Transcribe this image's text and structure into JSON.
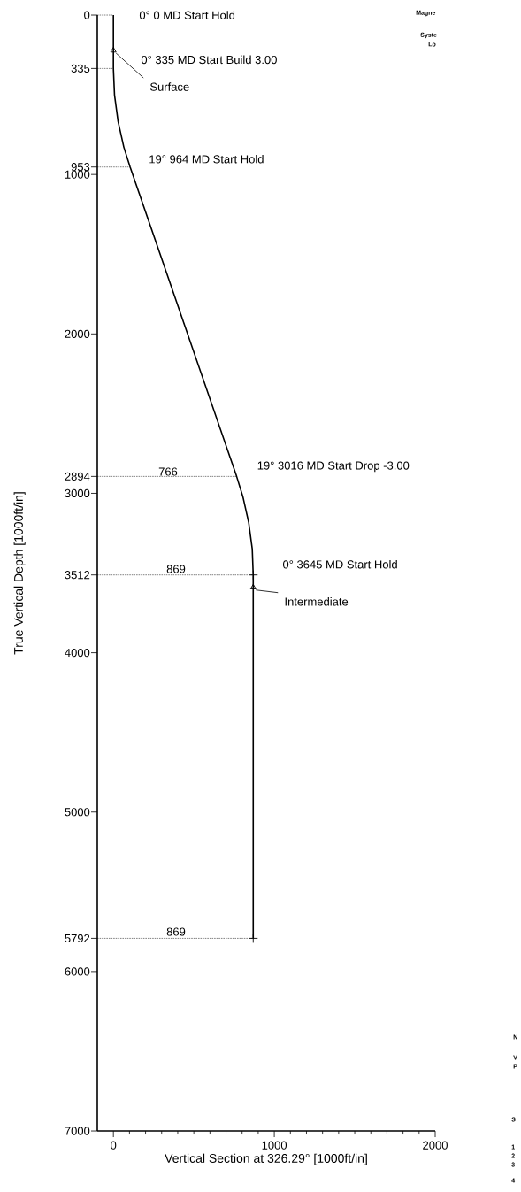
{
  "chart_data": {
    "type": "line",
    "xlabel": "Vertical Section at 326.29° [1000ft/in]",
    "ylabel": "True Vertical Depth [1000ft/in]",
    "xlim": [
      -100,
      2000
    ],
    "ylim": [
      7000,
      0
    ],
    "xticks": [
      0,
      1000,
      2000
    ],
    "yticks": [
      0,
      335,
      953,
      1000,
      2000,
      2894,
      3000,
      3512,
      4000,
      5000,
      5792,
      6000,
      7000
    ],
    "grid": false,
    "series": [
      {
        "color": "#000000",
        "marker": "none",
        "line_style": "solid",
        "x": [
          0,
          0,
          7,
          29,
          65,
          104,
          766,
          805,
          841,
          863,
          869,
          869
        ],
        "values": [
          0,
          335,
          501,
          667,
          829,
          953,
          2894,
          3022,
          3184,
          3349,
          3512,
          5792
        ]
      },
      {
        "type": "line",
        "color": "#000000",
        "line_style": "dotted",
        "marker": "none",
        "x": [
          -100,
          0
        ],
        "values": [
          0,
          0
        ]
      },
      {
        "type": "line",
        "color": "#000000",
        "line_style": "dotted",
        "marker": "none",
        "x": [
          -100,
          0
        ],
        "values": [
          335,
          335
        ]
      },
      {
        "type": "line",
        "color": "#000000",
        "line_style": "dotted",
        "marker": "none",
        "x": [
          -100,
          104
        ],
        "values": [
          953,
          953
        ]
      },
      {
        "type": "line",
        "color": "#000000",
        "line_style": "dotted",
        "marker": "none",
        "x": [
          -100,
          766
        ],
        "values": [
          2894,
          2894
        ]
      },
      {
        "type": "line",
        "color": "#000000",
        "line_style": "dotted",
        "marker": "none",
        "x": [
          -100,
          869
        ],
        "values": [
          3512,
          3512
        ]
      },
      {
        "type": "line",
        "color": "#000000",
        "line_style": "dotted",
        "marker": "none",
        "x": [
          -100,
          869
        ],
        "values": [
          5792,
          5792
        ]
      },
      {
        "type": "scatter",
        "color": "#000000",
        "marker": "triangle",
        "x": [
          0,
          869
        ],
        "values": [
          222,
          3590
        ]
      },
      {
        "type": "scatter",
        "color": "#000000",
        "marker": "cross",
        "x": [
          869,
          869
        ],
        "values": [
          3512,
          5792
        ]
      }
    ],
    "annotations": [
      {
        "text": "0° 0 MD Start Hold",
        "x": 0,
        "y": 0
      },
      {
        "text": "0° 335 MD Start Build 3.00",
        "x": 0,
        "y": 335
      },
      {
        "text": "Surface",
        "x": 0,
        "y": 222
      },
      {
        "text": "19° 964 MD Start Hold",
        "x": 104,
        "y": 953
      },
      "766",
      {
        "text": "19° 3016 MD Start Drop -3.00",
        "x": 766,
        "y": 2894
      },
      "869",
      {
        "text": "0° 3645 MD Start Hold",
        "x": 869,
        "y": 3512
      },
      {
        "text": "Intermediate",
        "x": 869,
        "y": 3590
      },
      "869",
      "Magne",
      "Syste",
      "Lo",
      "N",
      "V",
      "P",
      "S",
      "1",
      "2",
      "3",
      "4"
    ]
  }
}
